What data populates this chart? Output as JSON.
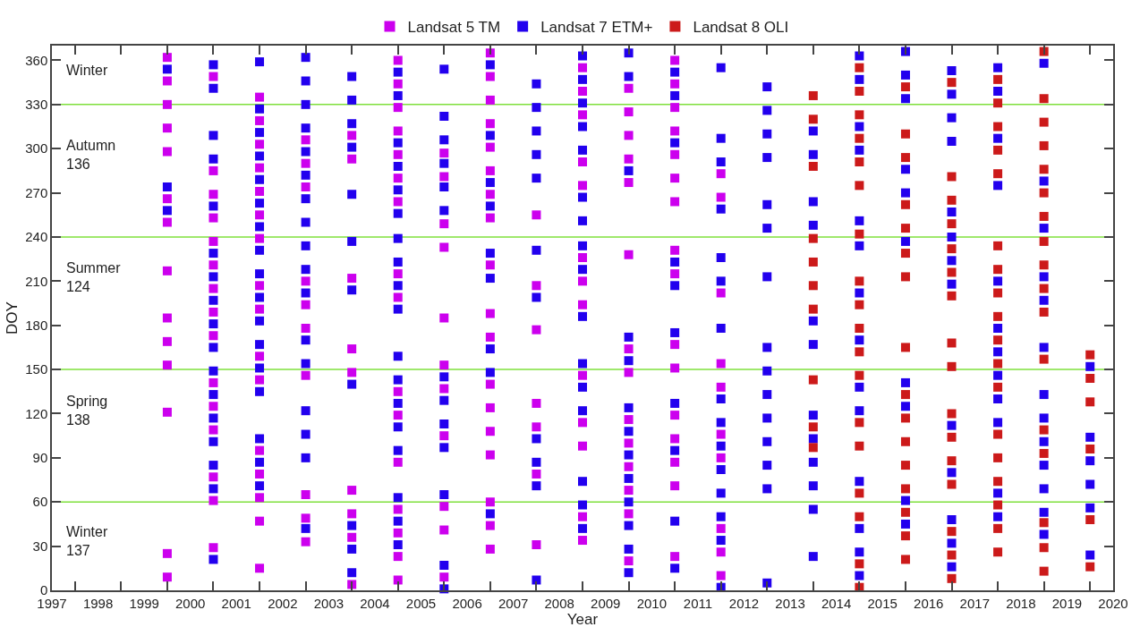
{
  "chart_data": {
    "type": "scatter",
    "xlabel": "Year",
    "ylabel": "DOY",
    "marker": "square",
    "grid": false,
    "legend": "top",
    "xlim": [
      1997,
      2020
    ],
    "xticks": [
      1997,
      1998,
      1999,
      2000,
      2001,
      2002,
      2003,
      2004,
      2005,
      2006,
      2007,
      2008,
      2009,
      2010,
      2011,
      2012,
      2013,
      2014,
      2015,
      2016,
      2017,
      2018,
      2019,
      2020,
      {
        "value": 1997.5,
        "label": null
      },
      {
        "value": 1998.5,
        "label": null
      },
      {
        "value": 1999.5,
        "label": null
      },
      {
        "value": 2000.5,
        "label": null
      },
      {
        "value": 2001.5,
        "label": null
      },
      {
        "value": 2002.5,
        "label": null
      },
      {
        "value": 2003.5,
        "label": null
      },
      {
        "value": 2004.5,
        "label": null
      },
      {
        "value": 2005.5,
        "label": null
      },
      {
        "value": 2006.5,
        "label": null
      },
      {
        "value": 2007.5,
        "label": null
      },
      {
        "value": 2008.5,
        "label": null
      },
      {
        "value": 2009.5,
        "label": null
      },
      {
        "value": 2010.5,
        "label": null
      },
      {
        "value": 2011.5,
        "label": null
      },
      {
        "value": 2012.5,
        "label": null
      },
      {
        "value": 2013.5,
        "label": null
      },
      {
        "value": 2014.5,
        "label": null
      },
      {
        "value": 2015.5,
        "label": null
      },
      {
        "value": 2016.5,
        "label": null
      },
      {
        "value": 2017.5,
        "label": null
      },
      {
        "value": 2018.5,
        "label": null
      },
      {
        "value": 2019.5,
        "label": null
      }
    ],
    "ylim": [
      0,
      370
    ],
    "yticks": [
      0,
      30,
      60,
      90,
      120,
      150,
      180,
      210,
      240,
      270,
      300,
      330,
      360
    ],
    "ref_lines": [
      {
        "axis": "y",
        "value": 60,
        "color": "#7fe03c"
      },
      {
        "axis": "y",
        "value": 150,
        "color": "#7fe03c"
      },
      {
        "axis": "y",
        "value": 240,
        "color": "#7fe03c"
      },
      {
        "axis": "y",
        "value": 330,
        "color": "#7fe03c"
      }
    ],
    "annotations": [
      "Winter",
      "Autumn\n136",
      "Summer\n124",
      "Spring\n138",
      "Winter\n137"
    ],
    "series": [
      {
        "name": "Landsat 5 TM",
        "color": "#cc00ee",
        "x": [
          1999.5,
          1999.5,
          1999.5,
          1999.5,
          1999.5,
          1999.5,
          1999.5,
          1999.5,
          1999.5,
          1999.5,
          1999.5,
          1999.5,
          1999.5,
          1999.5,
          2000.5,
          2000.5,
          2000.5,
          2000.5,
          2000.5,
          2000.5,
          2000.5,
          2000.5,
          2000.5,
          2000.5,
          2000.5,
          2000.5,
          2000.5,
          2000.5,
          2000.5,
          2001.5,
          2001.5,
          2001.5,
          2001.5,
          2001.5,
          2001.5,
          2001.5,
          2001.5,
          2001.5,
          2001.5,
          2001.5,
          2001.5,
          2001.5,
          2001.5,
          2001.5,
          2001.5,
          2002.5,
          2002.5,
          2002.5,
          2002.5,
          2002.5,
          2002.5,
          2002.5,
          2002.5,
          2002.5,
          2002.5,
          2003.5,
          2003.5,
          2003.5,
          2003.5,
          2003.5,
          2003.5,
          2003.5,
          2003.5,
          2003.5,
          2004.5,
          2004.5,
          2004.5,
          2004.5,
          2004.5,
          2004.5,
          2004.5,
          2004.5,
          2004.5,
          2004.5,
          2004.5,
          2004.5,
          2004.5,
          2004.5,
          2004.5,
          2004.5,
          2005.5,
          2005.5,
          2005.5,
          2005.5,
          2005.5,
          2005.5,
          2005.5,
          2005.5,
          2005.5,
          2005.5,
          2005.5,
          2006.5,
          2006.5,
          2006.5,
          2006.5,
          2006.5,
          2006.5,
          2006.5,
          2006.5,
          2006.5,
          2006.5,
          2006.5,
          2006.5,
          2006.5,
          2006.5,
          2006.5,
          2006.5,
          2006.5,
          2006.5,
          2007.5,
          2007.5,
          2007.5,
          2007.5,
          2007.5,
          2007.5,
          2007.5,
          2008.5,
          2008.5,
          2008.5,
          2008.5,
          2008.5,
          2008.5,
          2008.5,
          2008.5,
          2008.5,
          2008.5,
          2008.5,
          2008.5,
          2008.5,
          2009.5,
          2009.5,
          2009.5,
          2009.5,
          2009.5,
          2009.5,
          2009.5,
          2009.5,
          2009.5,
          2009.5,
          2009.5,
          2009.5,
          2009.5,
          2009.5,
          2010.5,
          2010.5,
          2010.5,
          2010.5,
          2010.5,
          2010.5,
          2010.5,
          2010.5,
          2010.5,
          2010.5,
          2010.5,
          2010.5,
          2010.5,
          2010.5,
          2010.5,
          2010.5,
          2011.5,
          2011.5,
          2011.5,
          2011.5,
          2011.5,
          2011.5,
          2011.5,
          2011.5,
          2011.5,
          2011.5
        ],
        "values": [
          362,
          346,
          330,
          314,
          298,
          266,
          250,
          217,
          185,
          169,
          153,
          121,
          25,
          9,
          349,
          285,
          269,
          253,
          237,
          221,
          205,
          189,
          173,
          141,
          125,
          109,
          77,
          61,
          29,
          335,
          319,
          303,
          287,
          271,
          255,
          239,
          207,
          191,
          159,
          143,
          95,
          79,
          63,
          47,
          15,
          306,
          290,
          274,
          210,
          194,
          178,
          146,
          65,
          49,
          33,
          309,
          293,
          212,
          164,
          148,
          68,
          52,
          36,
          4,
          360,
          344,
          328,
          312,
          296,
          280,
          264,
          215,
          199,
          135,
          119,
          87,
          55,
          39,
          23,
          7,
          297,
          281,
          249,
          233,
          185,
          153,
          137,
          105,
          57,
          41,
          9,
          365,
          349,
          333,
          317,
          301,
          285,
          269,
          253,
          221,
          188,
          172,
          140,
          124,
          108,
          92,
          60,
          44,
          28,
          255,
          207,
          177,
          127,
          111,
          79,
          31,
          355,
          339,
          323,
          291,
          275,
          226,
          210,
          194,
          146,
          114,
          98,
          50,
          34,
          341,
          325,
          309,
          293,
          277,
          228,
          164,
          148,
          116,
          100,
          84,
          68,
          52,
          20,
          360,
          344,
          328,
          312,
          296,
          280,
          264,
          231,
          215,
          167,
          151,
          119,
          103,
          87,
          71,
          23,
          283,
          267,
          202,
          154,
          138,
          106,
          90,
          42,
          26,
          10
        ]
      },
      {
        "name": "Landsat 7 ETM+",
        "color": "#2200ee",
        "x": [
          1999.5,
          1999.5,
          1999.5,
          2000.5,
          2000.5,
          2000.5,
          2000.5,
          2000.5,
          2000.5,
          2000.5,
          2000.5,
          2000.5,
          2000.5,
          2000.5,
          2000.5,
          2000.5,
          2000.5,
          2000.5,
          2000.5,
          2000.5,
          2001.5,
          2001.5,
          2001.5,
          2001.5,
          2001.5,
          2001.5,
          2001.5,
          2001.5,
          2001.5,
          2001.5,
          2001.5,
          2001.5,
          2001.5,
          2001.5,
          2001.5,
          2001.5,
          2001.5,
          2002.5,
          2002.5,
          2002.5,
          2002.5,
          2002.5,
          2002.5,
          2002.5,
          2002.5,
          2002.5,
          2002.5,
          2002.5,
          2002.5,
          2002.5,
          2002.5,
          2002.5,
          2002.5,
          2002.5,
          2003.5,
          2003.5,
          2003.5,
          2003.5,
          2003.5,
          2003.5,
          2003.5,
          2003.5,
          2003.5,
          2003.5,
          2003.5,
          2004.5,
          2004.5,
          2004.5,
          2004.5,
          2004.5,
          2004.5,
          2004.5,
          2004.5,
          2004.5,
          2004.5,
          2004.5,
          2004.5,
          2004.5,
          2004.5,
          2004.5,
          2004.5,
          2004.5,
          2004.5,
          2005.5,
          2005.5,
          2005.5,
          2005.5,
          2005.5,
          2005.5,
          2005.5,
          2005.5,
          2005.5,
          2005.5,
          2005.5,
          2005.5,
          2005.5,
          2006.5,
          2006.5,
          2006.5,
          2006.5,
          2006.5,
          2006.5,
          2006.5,
          2006.5,
          2006.5,
          2007.5,
          2007.5,
          2007.5,
          2007.5,
          2007.5,
          2007.5,
          2007.5,
          2007.5,
          2007.5,
          2007.5,
          2007.5,
          2008.5,
          2008.5,
          2008.5,
          2008.5,
          2008.5,
          2008.5,
          2008.5,
          2008.5,
          2008.5,
          2008.5,
          2008.5,
          2008.5,
          2008.5,
          2008.5,
          2008.5,
          2008.5,
          2009.5,
          2009.5,
          2009.5,
          2009.5,
          2009.5,
          2009.5,
          2009.5,
          2009.5,
          2009.5,
          2009.5,
          2009.5,
          2009.5,
          2009.5,
          2010.5,
          2010.5,
          2010.5,
          2010.5,
          2010.5,
          2010.5,
          2010.5,
          2010.5,
          2010.5,
          2010.5,
          2011.5,
          2011.5,
          2011.5,
          2011.5,
          2011.5,
          2011.5,
          2011.5,
          2011.5,
          2011.5,
          2011.5,
          2011.5,
          2011.5,
          2011.5,
          2011.5,
          2011.5,
          2012.5,
          2012.5,
          2012.5,
          2012.5,
          2012.5,
          2012.5,
          2012.5,
          2012.5,
          2012.5,
          2012.5,
          2012.5,
          2012.5,
          2012.5,
          2012.5,
          2012.5,
          2013.5,
          2013.5,
          2013.5,
          2013.5,
          2013.5,
          2013.5,
          2013.5,
          2013.5,
          2013.5,
          2013.5,
          2013.5,
          2013.5,
          2014.5,
          2014.5,
          2014.5,
          2014.5,
          2014.5,
          2014.5,
          2014.5,
          2014.5,
          2014.5,
          2014.5,
          2014.5,
          2014.5,
          2014.5,
          2014.5,
          2015.5,
          2015.5,
          2015.5,
          2015.5,
          2015.5,
          2015.5,
          2015.5,
          2015.5,
          2015.5,
          2015.5,
          2016.5,
          2016.5,
          2016.5,
          2016.5,
          2016.5,
          2016.5,
          2016.5,
          2016.5,
          2016.5,
          2016.5,
          2016.5,
          2016.5,
          2016.5,
          2017.5,
          2017.5,
          2017.5,
          2017.5,
          2017.5,
          2017.5,
          2017.5,
          2017.5,
          2017.5,
          2017.5,
          2017.5,
          2017.5,
          2018.5,
          2018.5,
          2018.5,
          2018.5,
          2018.5,
          2018.5,
          2018.5,
          2018.5,
          2018.5,
          2018.5,
          2018.5,
          2018.5,
          2018.5,
          2019.5,
          2019.5,
          2019.5,
          2019.5,
          2019.5,
          2019.5
        ],
        "values": [
          354,
          274,
          258,
          357,
          341,
          309,
          293,
          261,
          229,
          213,
          197,
          181,
          165,
          149,
          133,
          117,
          101,
          85,
          69,
          21,
          359,
          327,
          311,
          295,
          279,
          263,
          247,
          231,
          215,
          199,
          183,
          167,
          151,
          135,
          103,
          87,
          71,
          362,
          346,
          330,
          314,
          298,
          282,
          266,
          250,
          234,
          218,
          202,
          170,
          154,
          122,
          106,
          90,
          42,
          349,
          333,
          317,
          301,
          269,
          237,
          204,
          140,
          44,
          28,
          12,
          352,
          336,
          304,
          288,
          272,
          256,
          239,
          223,
          207,
          191,
          159,
          143,
          127,
          111,
          95,
          63,
          47,
          31,
          354,
          322,
          306,
          290,
          274,
          258,
          145,
          129,
          113,
          97,
          65,
          17,
          1,
          357,
          309,
          277,
          261,
          229,
          212,
          164,
          148,
          52,
          344,
          328,
          312,
          296,
          280,
          231,
          199,
          103,
          87,
          71,
          7,
          363,
          347,
          331,
          315,
          299,
          267,
          251,
          234,
          218,
          186,
          154,
          138,
          122,
          74,
          58,
          42,
          365,
          349,
          285,
          172,
          156,
          124,
          108,
          92,
          76,
          60,
          44,
          28,
          12,
          352,
          336,
          304,
          223,
          207,
          175,
          127,
          95,
          47,
          15,
          355,
          307,
          291,
          259,
          226,
          210,
          178,
          130,
          114,
          98,
          82,
          66,
          50,
          34,
          2,
          342,
          326,
          310,
          294,
          262,
          246,
          213,
          165,
          149,
          133,
          117,
          101,
          85,
          69,
          5,
          312,
          296,
          264,
          248,
          183,
          167,
          119,
          103,
          87,
          71,
          55,
          23,
          363,
          347,
          315,
          299,
          251,
          234,
          202,
          170,
          138,
          122,
          74,
          42,
          26,
          10,
          366,
          350,
          334,
          286,
          270,
          237,
          141,
          125,
          61,
          45,
          353,
          337,
          321,
          305,
          257,
          240,
          224,
          208,
          112,
          80,
          48,
          32,
          16,
          355,
          339,
          307,
          275,
          210,
          178,
          162,
          146,
          130,
          114,
          66,
          50,
          358,
          278,
          246,
          213,
          197,
          165,
          133,
          117,
          101,
          85,
          69,
          53,
          38,
          152,
          104,
          88,
          72,
          56,
          24
        ]
      },
      {
        "name": "Landsat 8 OLI",
        "color": "#cc1a1a",
        "x": [
          2013.5,
          2013.5,
          2013.5,
          2013.5,
          2013.5,
          2013.5,
          2013.5,
          2013.5,
          2013.5,
          2013.5,
          2014.5,
          2014.5,
          2014.5,
          2014.5,
          2014.5,
          2014.5,
          2014.5,
          2014.5,
          2014.5,
          2014.5,
          2014.5,
          2014.5,
          2014.5,
          2014.5,
          2014.5,
          2014.5,
          2014.5,
          2014.5,
          2015.5,
          2015.5,
          2015.5,
          2015.5,
          2015.5,
          2015.5,
          2015.5,
          2015.5,
          2015.5,
          2015.5,
          2015.5,
          2015.5,
          2015.5,
          2015.5,
          2015.5,
          2015.5,
          2016.5,
          2016.5,
          2016.5,
          2016.5,
          2016.5,
          2016.5,
          2016.5,
          2016.5,
          2016.5,
          2016.5,
          2016.5,
          2016.5,
          2016.5,
          2016.5,
          2016.5,
          2016.5,
          2017.5,
          2017.5,
          2017.5,
          2017.5,
          2017.5,
          2017.5,
          2017.5,
          2017.5,
          2017.5,
          2017.5,
          2017.5,
          2017.5,
          2017.5,
          2017.5,
          2017.5,
          2017.5,
          2017.5,
          2017.5,
          2018.5,
          2018.5,
          2018.5,
          2018.5,
          2018.5,
          2018.5,
          2018.5,
          2018.5,
          2018.5,
          2018.5,
          2018.5,
          2018.5,
          2018.5,
          2018.5,
          2018.5,
          2018.5,
          2018.5,
          2019.5,
          2019.5,
          2019.5,
          2019.5,
          2019.5,
          2019.5
        ],
        "values": [
          336,
          320,
          288,
          239,
          223,
          207,
          191,
          143,
          111,
          97,
          355,
          339,
          323,
          307,
          291,
          275,
          242,
          210,
          194,
          178,
          162,
          146,
          114,
          98,
          66,
          50,
          18,
          2,
          342,
          310,
          294,
          262,
          246,
          229,
          213,
          165,
          133,
          117,
          101,
          85,
          69,
          53,
          37,
          21,
          345,
          281,
          265,
          249,
          232,
          216,
          200,
          168,
          152,
          120,
          104,
          88,
          72,
          40,
          24,
          8,
          347,
          331,
          315,
          299,
          283,
          234,
          218,
          202,
          186,
          170,
          154,
          138,
          106,
          90,
          74,
          58,
          42,
          26,
          366,
          334,
          318,
          302,
          286,
          270,
          254,
          237,
          221,
          205,
          189,
          157,
          109,
          93,
          46,
          29,
          13,
          160,
          144,
          128,
          96,
          48,
          16
        ]
      }
    ]
  }
}
